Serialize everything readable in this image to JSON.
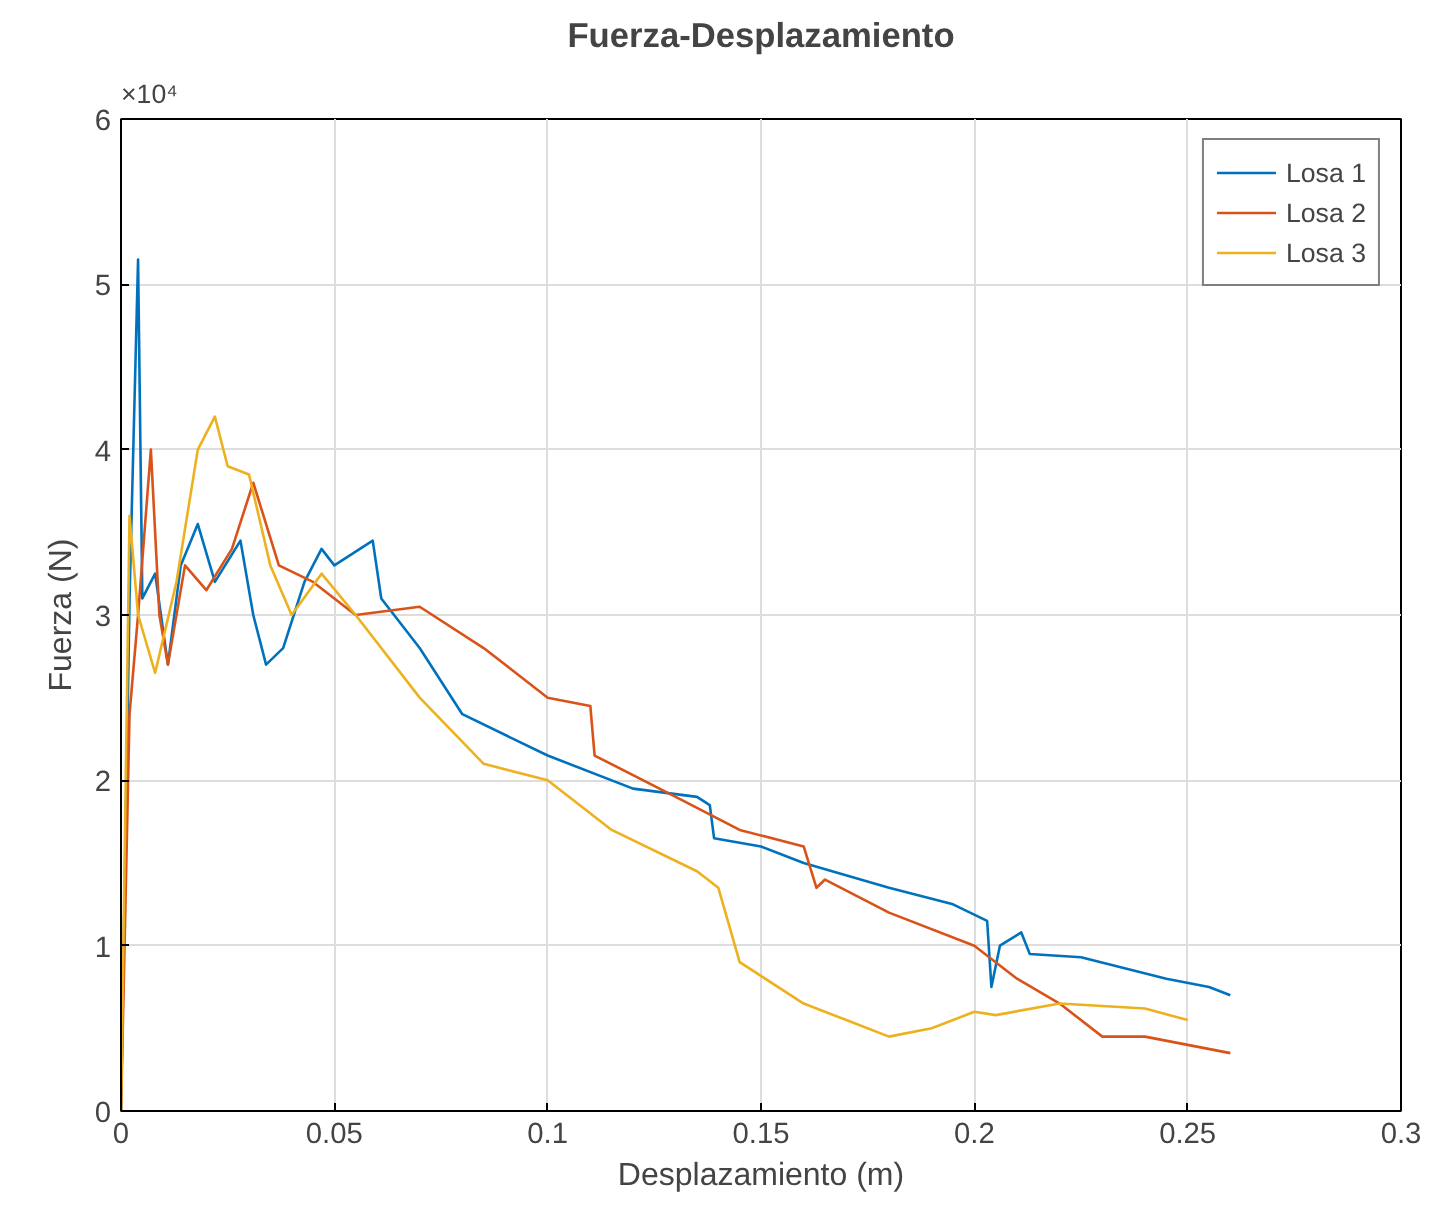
{
  "chart_data": {
    "type": "line",
    "title": "Fuerza-Desplazamiento",
    "xlabel": "Desplazamiento (m)",
    "ylabel": "Fuerza (N)",
    "annotations": [
      "×10⁴"
    ],
    "xlim": [
      0,
      0.3
    ],
    "xticks": [
      0,
      0.05,
      0.1,
      0.15,
      0.2,
      0.25,
      0.3
    ],
    "ylim": [
      0,
      6
    ],
    "yticks": [
      0,
      1,
      2,
      3,
      4,
      5,
      6
    ],
    "grid": true,
    "legend": "top right",
    "line_style": "solid",
    "marker": "none",
    "series": [
      {
        "name": "Losa 1",
        "color": "#0072bd",
        "x": [
          0,
          0.002,
          0.004,
          0.005,
          0.008,
          0.011,
          0.014,
          0.018,
          0.022,
          0.028,
          0.031,
          0.034,
          0.038,
          0.043,
          0.047,
          0.05,
          0.059,
          0.061,
          0.07,
          0.08,
          0.1,
          0.12,
          0.135,
          0.138,
          0.139,
          0.15,
          0.16,
          0.18,
          0.195,
          0.203,
          0.204,
          0.206,
          0.211,
          0.213,
          0.225,
          0.245,
          0.255,
          0.26
        ],
        "values": [
          0,
          3.1,
          5.15,
          3.1,
          3.25,
          2.7,
          3.3,
          3.55,
          3.2,
          3.45,
          3.0,
          2.7,
          2.8,
          3.2,
          3.4,
          3.3,
          3.45,
          3.1,
          2.8,
          2.4,
          2.15,
          1.95,
          1.9,
          1.85,
          1.65,
          1.6,
          1.5,
          1.35,
          1.25,
          1.15,
          0.75,
          1.0,
          1.08,
          0.95,
          0.93,
          0.8,
          0.75,
          0.7
        ]
      },
      {
        "name": "Losa 2",
        "color": "#d95319",
        "x": [
          0,
          0.002,
          0.004,
          0.007,
          0.009,
          0.011,
          0.015,
          0.02,
          0.026,
          0.031,
          0.037,
          0.045,
          0.055,
          0.07,
          0.085,
          0.1,
          0.11,
          0.111,
          0.13,
          0.145,
          0.16,
          0.163,
          0.165,
          0.18,
          0.2,
          0.21,
          0.22,
          0.23,
          0.24,
          0.26
        ],
        "values": [
          0,
          2.4,
          3.0,
          4.0,
          3.0,
          2.7,
          3.3,
          3.15,
          3.4,
          3.8,
          3.3,
          3.2,
          3.0,
          3.05,
          2.8,
          2.5,
          2.45,
          2.15,
          1.9,
          1.7,
          1.6,
          1.35,
          1.4,
          1.2,
          1.0,
          0.8,
          0.65,
          0.45,
          0.45,
          0.35
        ]
      },
      {
        "name": "Losa 3",
        "color": "#edb120",
        "x": [
          0,
          0.002,
          0.004,
          0.008,
          0.013,
          0.018,
          0.022,
          0.025,
          0.03,
          0.035,
          0.04,
          0.047,
          0.055,
          0.07,
          0.085,
          0.1,
          0.115,
          0.135,
          0.14,
          0.145,
          0.16,
          0.17,
          0.18,
          0.19,
          0.2,
          0.205,
          0.22,
          0.24,
          0.25
        ],
        "values": [
          0,
          3.6,
          3.0,
          2.65,
          3.2,
          4.0,
          4.2,
          3.9,
          3.85,
          3.3,
          3.0,
          3.25,
          3.0,
          2.5,
          2.1,
          2.0,
          1.7,
          1.45,
          1.35,
          0.9,
          0.65,
          0.55,
          0.45,
          0.5,
          0.6,
          0.58,
          0.65,
          0.62,
          0.55
        ]
      }
    ]
  }
}
